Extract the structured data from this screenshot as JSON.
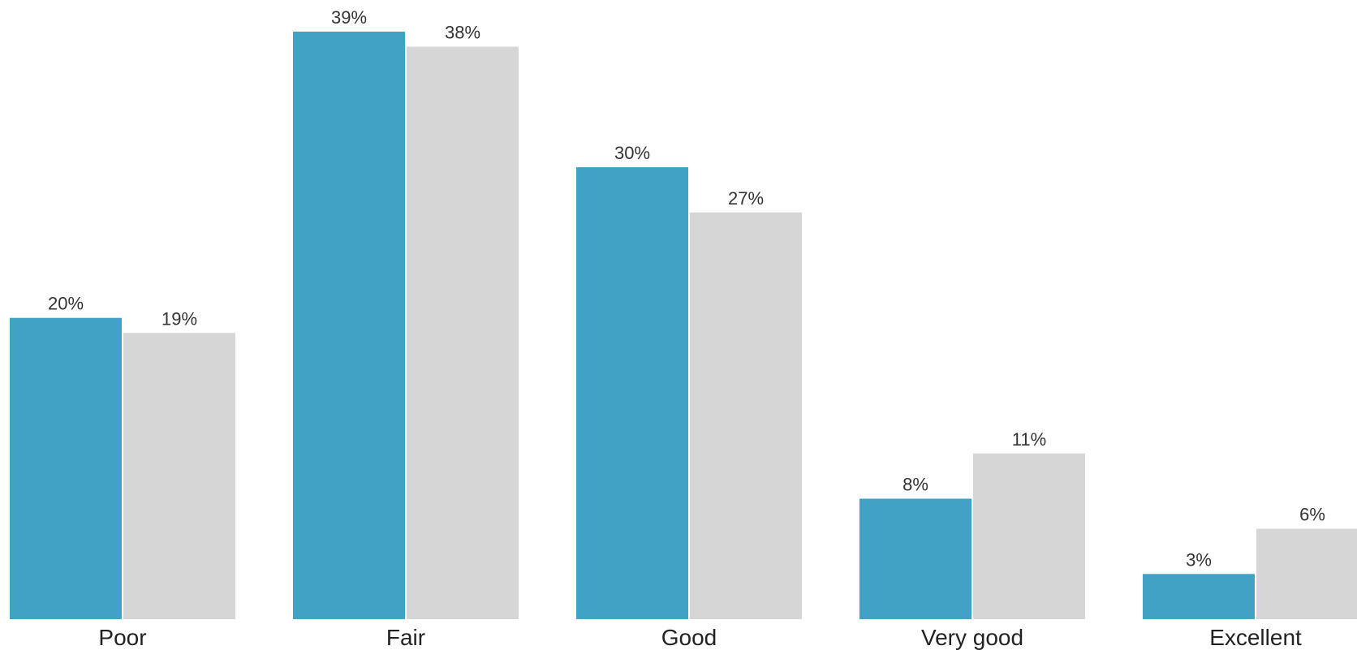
{
  "chart_data": {
    "type": "bar",
    "categories": [
      "Poor",
      "Fair",
      "Good",
      "Very good",
      "Excellent"
    ],
    "series": [
      {
        "values": [
          20,
          39,
          30,
          8,
          3
        ],
        "labels": [
          "20%",
          "39%",
          "30%",
          "8%",
          "3%"
        ],
        "color": "#42a2c6"
      },
      {
        "values": [
          19,
          38,
          27,
          11,
          6
        ],
        "labels": [
          "19%",
          "38%",
          "27%",
          "11%",
          "6%"
        ],
        "color": "#d6d6d6"
      }
    ],
    "title": "",
    "xlabel": "",
    "ylabel": "",
    "ylim": [
      0,
      39
    ],
    "grid": false,
    "legend": "none",
    "value_format": "percent"
  }
}
